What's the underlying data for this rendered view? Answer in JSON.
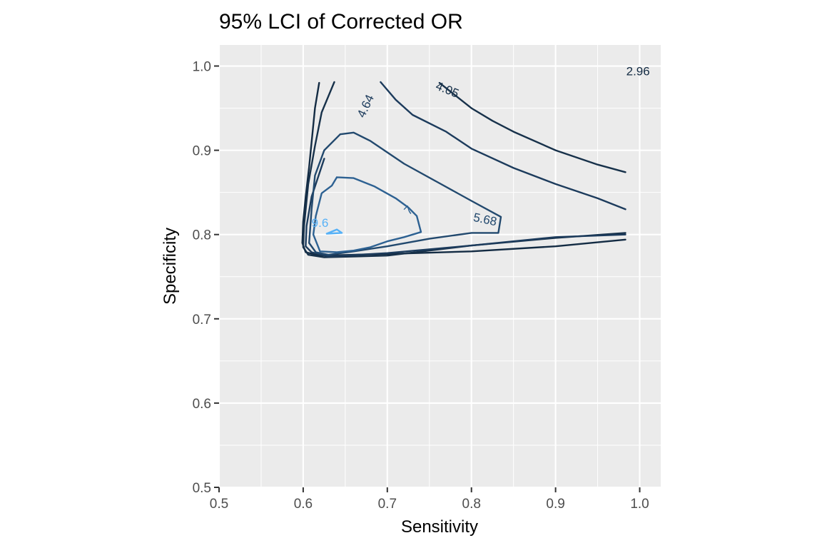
{
  "chart_data": {
    "type": "contour",
    "title": "95% LCI of Corrected OR",
    "xlabel": "Sensitivity",
    "ylabel": "Specificity",
    "xlim": [
      0.5,
      1.025
    ],
    "ylim": [
      0.5,
      1.025
    ],
    "x_ticks": [
      "0.5",
      "0.6",
      "0.7",
      "0.8",
      "0.9",
      "1.0"
    ],
    "y_ticks": [
      "0.5",
      "0.6",
      "0.7",
      "0.8",
      "0.9",
      "1.0"
    ],
    "grid": true,
    "background": "#EBEBEB",
    "legend": "none",
    "contours": [
      {
        "level": "2.96",
        "color": "#132B43",
        "label": {
          "text": "2.96",
          "x": 0.998,
          "y": 0.993,
          "angle": 0
        },
        "paths": [
          [
            [
              0.619,
              0.98
            ],
            [
              0.614,
              0.95
            ],
            [
              0.611,
              0.92
            ],
            [
              0.607,
              0.88
            ],
            [
              0.603,
              0.845
            ],
            [
              0.6,
              0.815
            ],
            [
              0.599,
              0.79
            ],
            [
              0.603,
              0.779
            ],
            [
              0.62,
              0.775
            ],
            [
              0.7,
              0.777
            ],
            [
              0.8,
              0.78
            ],
            [
              0.9,
              0.786
            ],
            [
              0.983,
              0.794
            ]
          ]
        ]
      },
      {
        "level": "4.05",
        "color": "#17314A",
        "label": {
          "text": "4.05",
          "x": 0.771,
          "y": 0.971,
          "angle": 22
        },
        "paths": [
          [
            [
              0.637,
              0.981
            ],
            [
              0.622,
              0.945
            ],
            [
              0.614,
              0.905
            ],
            [
              0.606,
              0.86
            ],
            [
              0.601,
              0.81
            ],
            [
              0.6,
              0.785
            ],
            [
              0.606,
              0.776
            ],
            [
              0.625,
              0.773
            ],
            [
              0.7,
              0.775
            ],
            [
              0.8,
              0.787
            ],
            [
              0.9,
              0.796
            ],
            [
              0.983,
              0.802
            ]
          ],
          [
            [
              0.762,
              0.98
            ],
            [
              0.8,
              0.95
            ],
            [
              0.825,
              0.935
            ],
            [
              0.85,
              0.922
            ],
            [
              0.9,
              0.9
            ],
            [
              0.95,
              0.883
            ],
            [
              0.983,
              0.874
            ]
          ]
        ]
      },
      {
        "level": "4.64",
        "color": "#1C3B5C",
        "label": {
          "text": "4.64",
          "x": 0.675,
          "y": 0.952,
          "angle": -65
        },
        "paths": [
          [
            [
              0.692,
              0.981
            ],
            [
              0.71,
              0.96
            ],
            [
              0.73,
              0.942
            ],
            [
              0.77,
              0.922
            ],
            [
              0.8,
              0.902
            ],
            [
              0.85,
              0.879
            ],
            [
              0.9,
              0.86
            ],
            [
              0.95,
              0.843
            ],
            [
              0.983,
              0.83
            ]
          ],
          [
            [
              0.625,
              0.89
            ],
            [
              0.61,
              0.845
            ],
            [
              0.604,
              0.81
            ],
            [
              0.603,
              0.786
            ],
            [
              0.61,
              0.779
            ],
            [
              0.63,
              0.774
            ],
            [
              0.7,
              0.778
            ],
            [
              0.8,
              0.787
            ],
            [
              0.9,
              0.797
            ],
            [
              0.983,
              0.8
            ]
          ]
        ]
      },
      {
        "level": "5.68",
        "color": "#22496E",
        "label": {
          "text": "5.68",
          "x": 0.816,
          "y": 0.817,
          "angle": 12
        },
        "paths": [
          [
            [
              0.644,
              0.919
            ],
            [
              0.66,
              0.921
            ],
            [
              0.68,
              0.911
            ],
            [
              0.72,
              0.884
            ],
            [
              0.76,
              0.862
            ],
            [
              0.8,
              0.84
            ],
            [
              0.835,
              0.821
            ],
            [
              0.832,
              0.802
            ],
            [
              0.8,
              0.802
            ],
            [
              0.75,
              0.795
            ],
            [
              0.7,
              0.786
            ],
            [
              0.66,
              0.78
            ],
            [
              0.63,
              0.776
            ],
            [
              0.615,
              0.779
            ],
            [
              0.607,
              0.79
            ],
            [
              0.61,
              0.83
            ],
            [
              0.614,
              0.87
            ],
            [
              0.625,
              0.9
            ],
            [
              0.644,
              0.919
            ]
          ]
        ]
      },
      {
        "level": "7",
        "color": "#2D6192",
        "label": {
          "text": "7",
          "x": 0.726,
          "y": 0.828,
          "angle": -45
        },
        "paths": [
          [
            [
              0.64,
              0.868
            ],
            [
              0.66,
              0.867
            ],
            [
              0.685,
              0.857
            ],
            [
              0.71,
              0.843
            ],
            [
              0.725,
              0.832
            ],
            [
              0.735,
              0.822
            ],
            [
              0.74,
              0.803
            ],
            [
              0.72,
              0.797
            ],
            [
              0.7,
              0.792
            ],
            [
              0.68,
              0.785
            ],
            [
              0.66,
              0.781
            ],
            [
              0.64,
              0.779
            ],
            [
              0.62,
              0.78
            ],
            [
              0.612,
              0.8
            ],
            [
              0.615,
              0.822
            ],
            [
              0.622,
              0.849
            ],
            [
              0.634,
              0.858
            ],
            [
              0.64,
              0.868
            ]
          ]
        ]
      },
      {
        "level": "9.6",
        "color": "#56B1F7",
        "label": {
          "text": "9.6",
          "x": 0.62,
          "y": 0.813,
          "angle": 0
        },
        "paths": [
          [
            [
              0.628,
              0.801
            ],
            [
              0.64,
              0.806
            ],
            [
              0.646,
              0.802
            ],
            [
              0.628,
              0.801
            ]
          ]
        ]
      }
    ]
  }
}
